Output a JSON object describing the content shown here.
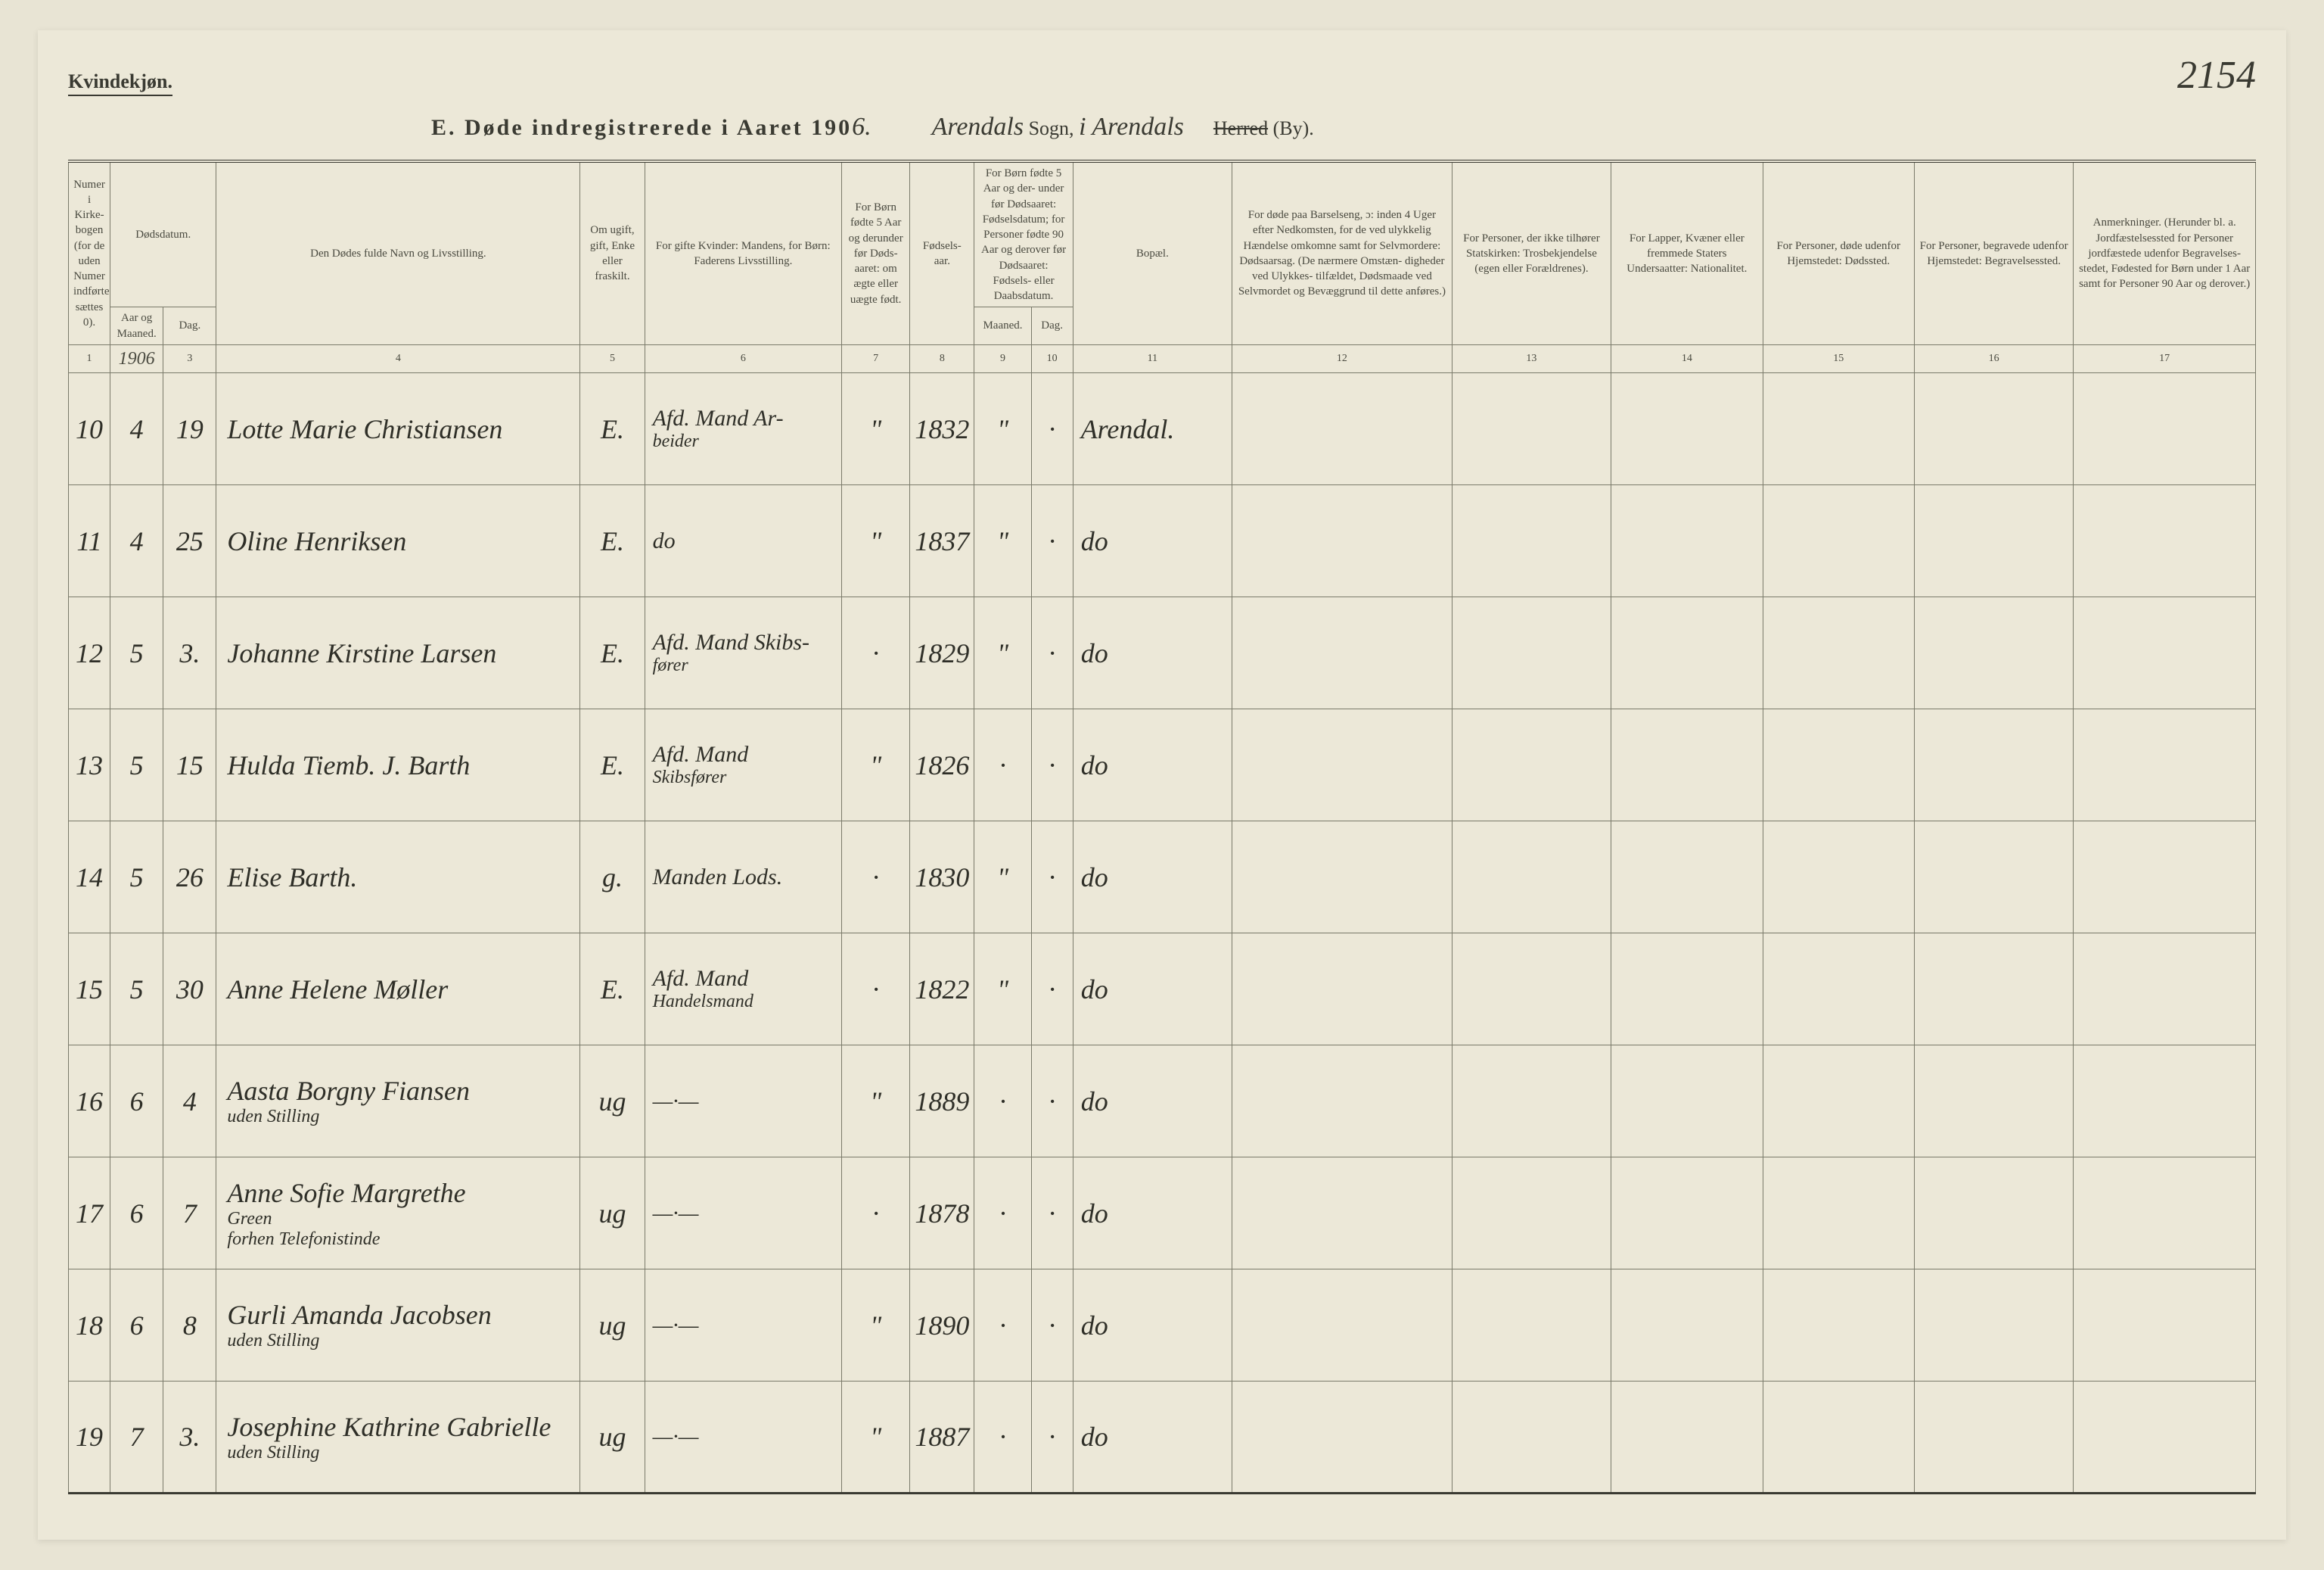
{
  "page": {
    "background_color": "#ece8d8",
    "text_color": "#3a3a32",
    "font_family": "Georgia, serif",
    "hand_font_family": "Brush Script MT, cursive"
  },
  "header": {
    "gender": "Kvindekjøn.",
    "title_prefix": "E.   Døde indregistrerede i Aaret 190",
    "year_suffix_hand": "6.",
    "sogn_value": "Arendals",
    "sogn_label": " Sogn,   ",
    "i_hand": "i  Arendals",
    "herred_label": "Herred",
    "by_label": " (By).",
    "page_number": "2154"
  },
  "columns": {
    "c1": "Numer\ni Kirke-\nbogen\n(for de\nuden\nNumer\nindførte\nsættes\n0).",
    "c2_group": "Dødsdatum.",
    "c2a": "Aar\nog\nMaaned.",
    "c2b": "Dag.",
    "c4": "Den Dødes fulde Navn og Livsstilling.",
    "c5": "Om\nugift,\ngift,\nEnke\neller\nfraskilt.",
    "c6": "For gifte Kvinder:\nMandens,\nfor Børn:\nFaderens Livsstilling.",
    "c7": "For Børn\nfødte\n5 Aar og\nderunder\nfør Døds-\naaret:\nom ægte\neller\nuægte\nfødt.",
    "c8": "Fødsels-\naar.",
    "c9_group": "For Børn fødte\n5 Aar og der-\nunder før\nDødsaaret:\nFødselsdatum;\nfor Personer\nfødte 90 Aar\nog derover før\nDødsaaret:\nFødsels- eller\nDaabsdatum.",
    "c9a": "Maaned.",
    "c9b": "Dag.",
    "c11": "Bopæl.",
    "c12": "For døde paa Barselseng,\nɔ: inden 4 Uger efter\nNedkomsten,\nfor de ved ulykkelig\nHændelse omkomne\nsamt for Selvmordere:\nDødsaarsag.\n(De nærmere Omstæn-\ndigheder ved Ulykkes-\ntilfældet, Dødsmaade ved\nSelvmordet og Bevæggrund\ntil dette anføres.)",
    "c13": "For Personer,\nder ikke tilhører\nStatskirken:\nTrosbekjendelse\n(egen eller Forældrenes).",
    "c14": "For Lapper, Kvæner\neller fremmede\nStaters Undersaatter:\nNationalitet.",
    "c15": "For Personer, døde\nudenfor Hjemstedet:\nDødssted.",
    "c16": "For Personer, begravede\nudenfor Hjemstedet:\nBegravelsessted.",
    "c17": "Anmerkninger.\n(Herunder bl. a.\nJordfæstelsessted for\nPersoner jordfæstede\nudenfor Begravelses-\nstedet, Fødested for\nBørn under 1 Aar\nsamt for Personer\n90 Aar og derover.)"
  },
  "colnums": [
    "1",
    "1906",
    "3",
    "4",
    "5",
    "6",
    "7",
    "8",
    "9",
    "10",
    "11",
    "12",
    "13",
    "14",
    "15",
    "16",
    "17"
  ],
  "rows": [
    {
      "n": "10",
      "ym": "4",
      "d": "19",
      "name": "Lotte Marie Christiansen",
      "ms": "E.",
      "occ": "Afd. Mand Ar-\nbeider",
      "leg": "\"",
      "by": "1832",
      "bm": "\"",
      "bd": "·",
      "res": "Arendal."
    },
    {
      "n": "11",
      "ym": "4",
      "d": "25",
      "name": "Oline Henriksen",
      "ms": "E.",
      "occ": "do",
      "leg": "\"",
      "by": "1837",
      "bm": "\"",
      "bd": "·",
      "res": "do"
    },
    {
      "n": "12",
      "ym": "5",
      "d": "3.",
      "name": "Johanne Kirstine Larsen",
      "ms": "E.",
      "occ": "Afd. Mand Skibs-\nfører",
      "leg": "·",
      "by": "1829",
      "bm": "\"",
      "bd": "·",
      "res": "do"
    },
    {
      "n": "13",
      "ym": "5",
      "d": "15",
      "name": "Hulda Tiemb. J. Barth",
      "ms": "E.",
      "occ": "Afd. Mand\nSkibsfører",
      "leg": "\"",
      "by": "1826",
      "bm": "·",
      "bd": "·",
      "res": "do"
    },
    {
      "n": "14",
      "ym": "5",
      "d": "26",
      "name": "Elise Barth.",
      "ms": "g.",
      "occ": "Manden Lods.",
      "leg": "·",
      "by": "1830",
      "bm": "\"",
      "bd": "·",
      "res": "do"
    },
    {
      "n": "15",
      "ym": "5",
      "d": "30",
      "name": "Anne Helene Møller",
      "ms": "E.",
      "occ": "Afd. Mand\nHandelsmand",
      "leg": "·",
      "by": "1822",
      "bm": "\"",
      "bd": "·",
      "res": "do"
    },
    {
      "n": "16",
      "ym": "6",
      "d": "4",
      "name": "Aasta Borgny Fiansen\nuden Stilling",
      "ms": "ug",
      "occ": "—·—",
      "leg": "\"",
      "by": "1889",
      "bm": "·",
      "bd": "·",
      "res": "do"
    },
    {
      "n": "17",
      "ym": "6",
      "d": "7",
      "name": "Anne Sofie Margrethe\nGreen\nforhen Telefonistinde",
      "ms": "ug",
      "occ": "—·—",
      "leg": "·",
      "by": "1878",
      "bm": "·",
      "bd": "·",
      "res": "do"
    },
    {
      "n": "18",
      "ym": "6",
      "d": "8",
      "name": "Gurli Amanda Jacobsen\nuden Stilling",
      "ms": "ug",
      "occ": "—·—",
      "leg": "\"",
      "by": "1890",
      "bm": "·",
      "bd": "·",
      "res": "do"
    },
    {
      "n": "19",
      "ym": "7",
      "d": "3.",
      "name": "Josephine Kathrine Gabrielle\nuden Stilling",
      "ms": "ug",
      "occ": "—·—",
      "leg": "\"",
      "by": "1887",
      "bm": "·",
      "bd": "·",
      "res": "do"
    }
  ]
}
